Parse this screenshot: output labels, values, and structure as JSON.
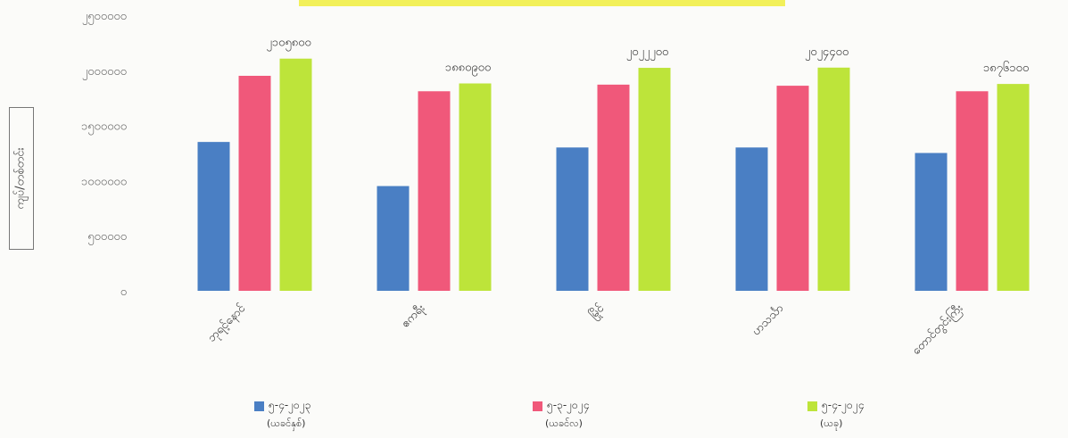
{
  "chart_data": {
    "type": "bar",
    "categories": [
      "ဘုရင့်နောင်",
      "ဧကရီး",
      "မြိုင်",
      "ဟသင်္သာ",
      "တောင်တွင်းကြီး"
    ],
    "series": [
      {
        "name": "၅-၄-၂၀၂၃",
        "sub": "(ယခင်နှစ်)",
        "color": "#4a7fc4",
        "values": [
          1350000,
          950000,
          1300000,
          1300000,
          1250000
        ]
      },
      {
        "name": "၅-၃-၂၀၂၄",
        "sub": "(ယခင်လ)",
        "color": "#f0587a",
        "values": [
          1950000,
          1810000,
          1870000,
          1860000,
          1810000
        ]
      },
      {
        "name": "၅-၄-၂၀၂၄",
        "sub": "(ယခု)",
        "color": "#bde43a",
        "values": [
          2105800,
          1880900,
          2022200,
          2024400,
          1876100
        ]
      }
    ],
    "data_labels": [
      "၂၁၀၅၈၀၀",
      "၁၈၈၀၉၀၀",
      "၂၀၂၂၂၀၀",
      "၂၀၂၄၄၀၀",
      "၁၈၇၆၁၀၀"
    ],
    "yticks": [
      "၀",
      "၅၀၀၀၀၀",
      "၁၀၀၀၀၀၀",
      "၁၅၀၀၀၀၀",
      "၂၀၀၀၀၀၀",
      "၂၅၀၀၀၀၀"
    ],
    "ylim": [
      0,
      2500000
    ],
    "ylabel": "ကျပ်/တစ်တင်း",
    "grid": false,
    "legend_position": "bottom"
  }
}
